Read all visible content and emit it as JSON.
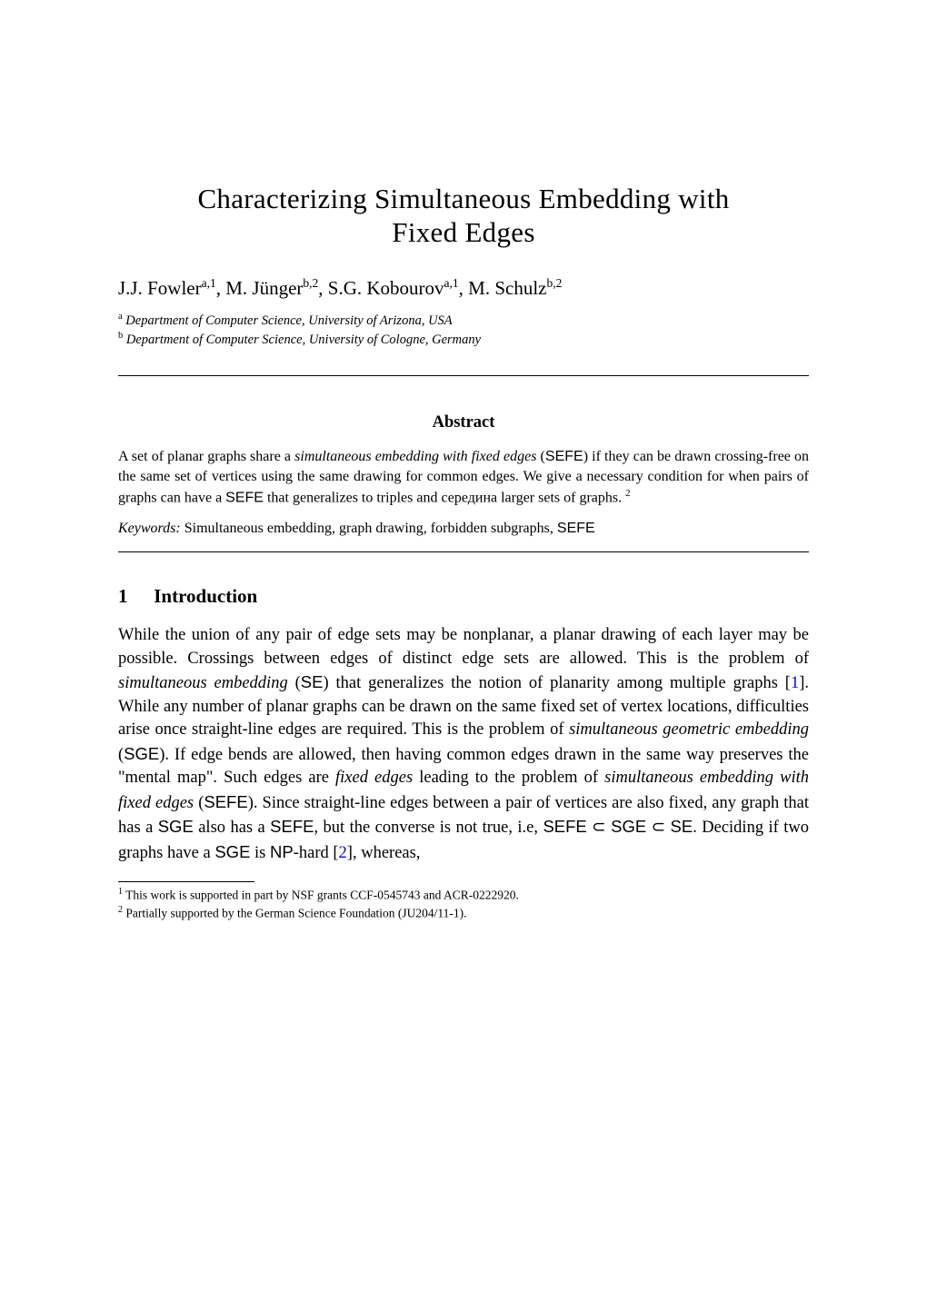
{
  "title_line1": "Characterizing Simultaneous Embedding with",
  "title_line2": "Fixed Edges",
  "authors": {
    "a1_name": "J.J. Fowler",
    "a1_sup": "a,1",
    "sep1": ",  ",
    "a2_name": "M. Jünger",
    "a2_sup": "b,2",
    "sep2": ",  ",
    "a3_name": "S.G. Kobourov",
    "a3_sup": "a,1",
    "sep3": ",  ",
    "a4_name": "M. Schulz",
    "a4_sup": "b,2"
  },
  "affiliations": {
    "a_sup": "a",
    "a_text": "Department of Computer Science, University of Arizona, USA",
    "b_sup": "b",
    "b_text": "Department of Computer Science, University of Cologne, Germany"
  },
  "abstract": {
    "heading": "Abstract",
    "body_part1": "A set of planar graphs share a ",
    "body_ital1": "simultaneous embedding with fixed edges",
    "body_part2": " (",
    "body_sf1": "SEFE",
    "body_part3": ") if they can be drawn crossing-free on the same set of vertices using the same drawing for common edges. We give a necessary condition for when pairs of graphs can have a ",
    "body_sf2": "SEFE",
    "body_part4": " that generalizes to triples and середина larger sets of graphs. ",
    "body_fn": "2",
    "kw_label": "Keywords: ",
    "kw_text": "Simultaneous embedding, graph drawing, forbidden subgraphs, ",
    "kw_sf": "SEFE"
  },
  "section1": {
    "num": "1",
    "title": "Introduction",
    "p1_a": "While the union of any pair of edge sets may be nonplanar, a planar drawing of each layer may be possible. Crossings between edges of distinct edge sets are allowed. This is the problem of ",
    "p1_ital1": "simultaneous embedding",
    "p1_b": " (",
    "p1_sf1": "SE",
    "p1_c": ") that generalizes the notion of planarity among multiple graphs [",
    "p1_cite1": "1",
    "p1_d": "]. While any number of planar graphs can be drawn on the same fixed set of vertex locations, difficulties arise once straight-line edges are required.  This is the problem of ",
    "p1_ital2": "simultaneous geometric embedding",
    "p1_e": " (",
    "p1_sf2": "SGE",
    "p1_f": "). If edge bends are allowed, then having common edges drawn in the same way preserves the \"mental map\". Such edges are ",
    "p1_ital3": "fixed edges",
    "p1_g": " leading to the problem of ",
    "p1_ital4": "simultaneous embedding with fixed edges",
    "p1_h": " (",
    "p1_sf3": "SEFE",
    "p1_i": "). Since straight-line edges between a pair of vertices are also fixed, any graph that has a ",
    "p1_sf4": "SGE",
    "p1_j": " also has a ",
    "p1_sf5": "SEFE",
    "p1_k": ", but the converse is not true, i.e, ",
    "p1_sf6": "SEFE",
    "p1_sub1": " ⊂ ",
    "p1_sf7": "SGE",
    "p1_sub2": " ⊂ ",
    "p1_sf8": "SE",
    "p1_l": ". Deciding if two graphs have a ",
    "p1_sf9": "SGE",
    "p1_m": " is ",
    "p1_sf10": "NP",
    "p1_n": "-hard [",
    "p1_cite2": "2",
    "p1_o": "], whereas,"
  },
  "footnotes": {
    "fn1_num": "1",
    "fn1_text": " This work is supported in part by NSF grants CCF-0545743 and ACR-0222920.",
    "fn2_num": "2",
    "fn2_text": " Partially supported by the German Science Foundation (JU204/11-1)."
  }
}
